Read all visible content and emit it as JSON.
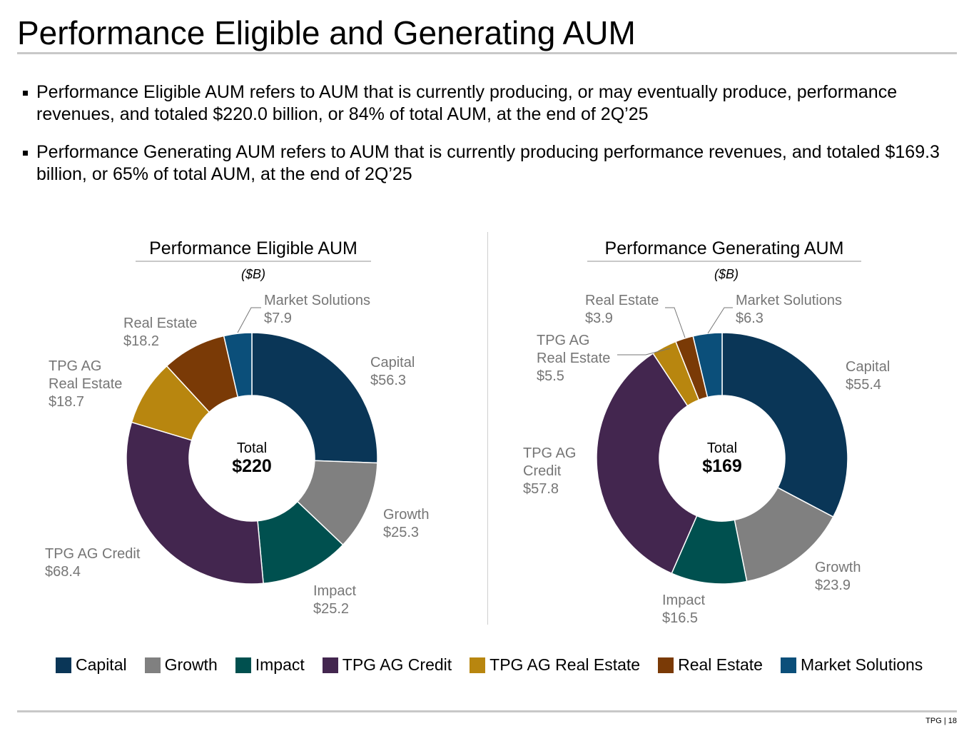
{
  "header": {
    "title": "Performance Eligible and Generating AUM"
  },
  "bullets": [
    "Performance Eligible AUM refers to AUM that is currently producing, or may eventually produce, performance revenues, and totaled $220.0 billion, or 84% of total AUM, at the end of 2Q’25",
    "Performance Generating AUM refers to AUM that is currently producing performance revenues, and totaled $169.3 billion, or 65% of total AUM, at the end of 2Q’25"
  ],
  "colors": {
    "Capital": "#0a3657",
    "Growth": "#808080",
    "Impact": "#00504f",
    "TPG AG Credit": "#43264f",
    "TPG AG Real Estate": "#b8860f",
    "Real Estate": "#7a3a06",
    "Market Solutions": "#0b4f7a"
  },
  "legend": [
    "Capital",
    "Growth",
    "Impact",
    "TPG AG Credit",
    "TPG AG Real Estate",
    "Real Estate",
    "Market Solutions"
  ],
  "chart_data": [
    {
      "type": "pie",
      "title": "Performance Eligible AUM",
      "unit": "($B)",
      "center_label": "Total",
      "center_value": "$220",
      "categories": [
        "Capital",
        "Growth",
        "Impact",
        "TPG AG Credit",
        "TPG AG Real Estate",
        "Real Estate",
        "Market Solutions"
      ],
      "values": [
        56.3,
        25.3,
        25.2,
        68.4,
        18.7,
        18.2,
        7.9
      ],
      "labels": [
        [
          "Capital",
          "$56.3"
        ],
        [
          "Growth",
          "$25.3"
        ],
        [
          "Impact",
          "$25.2"
        ],
        [
          "TPG AG Credit",
          "$68.4"
        ],
        [
          "TPG AG",
          "Real Estate",
          "$18.7"
        ],
        [
          "Real Estate",
          "$18.2"
        ],
        [
          "Market Solutions",
          "$7.9"
        ]
      ]
    },
    {
      "type": "pie",
      "title": "Performance Generating AUM",
      "unit": "($B)",
      "center_label": "Total",
      "center_value": "$169",
      "categories": [
        "Capital",
        "Growth",
        "Impact",
        "TPG AG Credit",
        "TPG AG Real Estate",
        "Real Estate",
        "Market Solutions"
      ],
      "values": [
        55.4,
        23.9,
        16.5,
        57.8,
        5.5,
        3.9,
        6.3
      ],
      "labels": [
        [
          "Capital",
          "$55.4"
        ],
        [
          "Growth",
          "$23.9"
        ],
        [
          "Impact",
          "$16.5"
        ],
        [
          "TPG AG",
          "Credit",
          "$57.8"
        ],
        [
          "TPG AG",
          "Real Estate",
          "$5.5"
        ],
        [
          "Real Estate",
          "$3.9"
        ],
        [
          "Market Solutions",
          "$6.3"
        ]
      ]
    }
  ],
  "footer": {
    "text": "TPG | 18"
  }
}
